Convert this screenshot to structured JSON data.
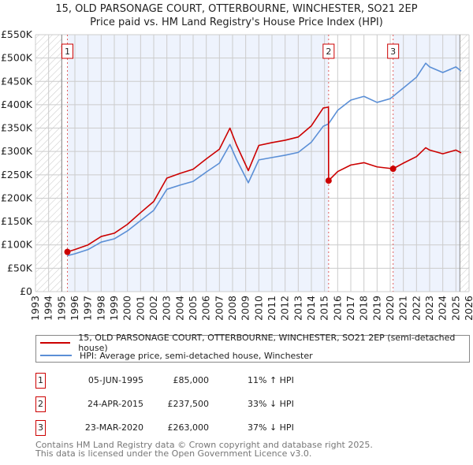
{
  "chart_data": {
    "type": "line",
    "title": "15, OLD PARSONAGE COURT, OTTERBOURNE, WINCHESTER, SO21 2EP",
    "subtitle": "Price paid vs. HM Land Registry's House Price Index (HPI)",
    "xlim": [
      1993,
      2026
    ],
    "ylim": [
      0,
      550000
    ],
    "x_ticks": [
      "1993",
      "1994",
      "1995",
      "1996",
      "1997",
      "1998",
      "1999",
      "2000",
      "2001",
      "2002",
      "2003",
      "2004",
      "2005",
      "2006",
      "2007",
      "2008",
      "2009",
      "2010",
      "2011",
      "2012",
      "2013",
      "2014",
      "2015",
      "2016",
      "2017",
      "2018",
      "2019",
      "2020",
      "2021",
      "2022",
      "2023",
      "2024",
      "2025",
      "2026"
    ],
    "y_ticks": [
      {
        "value": 0,
        "label": "£0"
      },
      {
        "value": 50000,
        "label": "£50K"
      },
      {
        "value": 100000,
        "label": "£100K"
      },
      {
        "value": 150000,
        "label": "£150K"
      },
      {
        "value": 200000,
        "label": "£200K"
      },
      {
        "value": 250000,
        "label": "£250K"
      },
      {
        "value": 300000,
        "label": "£300K"
      },
      {
        "value": 350000,
        "label": "£350K"
      },
      {
        "value": 400000,
        "label": "£400K"
      },
      {
        "value": 450000,
        "label": "£450K"
      },
      {
        "value": 500000,
        "label": "£500K"
      },
      {
        "value": 550000,
        "label": "£550K"
      }
    ],
    "grid": true,
    "data_range": [
      1995,
      2025.3
    ],
    "series": [
      {
        "name": "15, OLD PARSONAGE COURT, OTTERBOURNE, WINCHESTER, SO21 2EP (semi-detached house)",
        "color": "#cc0000",
        "x": [
          1995.43,
          1996,
          1997,
          1998,
          1999,
          2000,
          2001,
          2002,
          2003,
          2004,
          2005,
          2006,
          2007,
          2007.8,
          2008.3,
          2009.2,
          2010,
          2011,
          2012,
          2013,
          2014,
          2014.9,
          2015.3,
          2015.31,
          2016,
          2017,
          2018,
          2019,
          2020.22,
          2021,
          2022,
          2022.7,
          2023,
          2024,
          2025,
          2025.4
        ],
        "y": [
          85000,
          90000,
          100000,
          118000,
          125000,
          144000,
          169000,
          193000,
          243000,
          253000,
          262000,
          284000,
          305000,
          350000,
          314000,
          259000,
          313000,
          319000,
          324000,
          331000,
          355000,
          393000,
          395000,
          237500,
          257000,
          271000,
          276000,
          267000,
          263000,
          275000,
          289000,
          308000,
          303000,
          295000,
          303000,
          297000
        ]
      },
      {
        "name": "HPI: Average price, semi-detached house, Winchester",
        "color": "#5b8fd6",
        "x": [
          1995.43,
          1996,
          1997,
          1998,
          1999,
          2000,
          2001,
          2002,
          2003,
          2004,
          2005,
          2006,
          2007,
          2007.8,
          2008.3,
          2009.2,
          2010,
          2011,
          2012,
          2013,
          2014,
          2014.9,
          2015.3,
          2016,
          2017,
          2018,
          2019,
          2020,
          2021,
          2022,
          2022.7,
          2023,
          2024,
          2025,
          2025.4
        ],
        "y": [
          77000,
          81000,
          90000,
          106000,
          113000,
          130000,
          152000,
          174000,
          219000,
          228000,
          236000,
          256000,
          275000,
          315000,
          283000,
          233000,
          282000,
          287000,
          292000,
          298000,
          320000,
          354000,
          359000,
          388000,
          410000,
          418000,
          405000,
          413000,
          436000,
          459000,
          489000,
          481000,
          469000,
          481000,
          472000
        ]
      }
    ],
    "sales": [
      {
        "label": "1",
        "x": 1995.43,
        "price": 85000
      },
      {
        "label": "2",
        "x": 2015.31,
        "price": 237500
      },
      {
        "label": "3",
        "x": 2020.22,
        "price": 263000
      }
    ],
    "legend_position": "bottom"
  },
  "legend": {
    "property": "15, OLD PARSONAGE COURT, OTTERBOURNE, WINCHESTER, SO21 2EP (semi-detached house)",
    "hpi": "HPI: Average price, semi-detached house, Winchester"
  },
  "transactions": [
    {
      "num": "1",
      "date": "05-JUN-1995",
      "price": "£85,000",
      "hpi": "11% ↑ HPI"
    },
    {
      "num": "2",
      "date": "24-APR-2015",
      "price": "£237,500",
      "hpi": "33% ↓ HPI"
    },
    {
      "num": "3",
      "date": "23-MAR-2020",
      "price": "£263,000",
      "hpi": "37% ↓ HPI"
    }
  ],
  "footer": {
    "line1": "Contains HM Land Registry data © Crown copyright and database right 2025.",
    "line2": "This data is licensed under the Open Government Licence v3.0."
  },
  "colors": {
    "property": "#cc0000",
    "hpi": "#5b8fd6",
    "band": "#eef3fd",
    "grid": "#cccccc"
  }
}
